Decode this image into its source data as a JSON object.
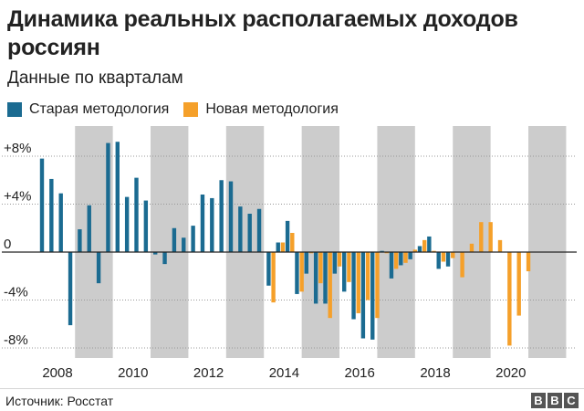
{
  "title": "Динамика реальных располагаемых доходов россиян",
  "subtitle": "Данные по кварталам",
  "source": "Источник: Росстат",
  "logo": [
    "B",
    "B",
    "C"
  ],
  "colors": {
    "old": "#1b6b91",
    "new": "#f5a02a",
    "shade": "#cccccc",
    "grid": "#999999",
    "zero": "#222222"
  },
  "chart_data": {
    "type": "bar",
    "x_axis_ticks": [
      "2008",
      "2010",
      "2012",
      "2014",
      "2016",
      "2018",
      "2020"
    ],
    "y_axis_ticks": [
      "+8%",
      "+4%",
      "0",
      "-4%",
      "-8%"
    ],
    "ylim": [
      -9,
      9.5
    ],
    "shading": "alternating years shaded grey",
    "legend_position": "top-left",
    "series": [
      {
        "name": "Старая методология",
        "color": "#1b6b91",
        "x": [
          "2008 Q1",
          "2008 Q2",
          "2008 Q3",
          "2008 Q4",
          "2009 Q1",
          "2009 Q2",
          "2009 Q3",
          "2009 Q4",
          "2010 Q1",
          "2010 Q2",
          "2010 Q3",
          "2010 Q4",
          "2011 Q1",
          "2011 Q2",
          "2011 Q3",
          "2011 Q4",
          "2012 Q1",
          "2012 Q2",
          "2012 Q3",
          "2012 Q4",
          "2013 Q1",
          "2013 Q2",
          "2013 Q3",
          "2013 Q4",
          "2014 Q1",
          "2014 Q2",
          "2014 Q3",
          "2014 Q4",
          "2015 Q1",
          "2015 Q2",
          "2015 Q3",
          "2015 Q4",
          "2016 Q1",
          "2016 Q2",
          "2016 Q3",
          "2016 Q4",
          "2017 Q1",
          "2017 Q2",
          "2017 Q3",
          "2017 Q4",
          "2018 Q1",
          "2018 Q2",
          "2018 Q3",
          "2018 Q4"
        ],
        "values": [
          7.8,
          6.1,
          4.9,
          -6.1,
          1.9,
          3.9,
          -2.6,
          9.1,
          9.2,
          4.6,
          6.2,
          4.3,
          -0.2,
          -1.0,
          2.0,
          1.2,
          2.2,
          4.8,
          4.5,
          6.0,
          5.9,
          3.8,
          3.2,
          3.6,
          -2.8,
          0.8,
          2.6,
          -3.5,
          -1.8,
          -4.3,
          -4.3,
          -1.8,
          -3.3,
          -5.6,
          -7.2,
          -7.3,
          0.1,
          -2.2,
          -1.1,
          -0.6,
          0.5,
          1.3,
          -1.4,
          -1.2
        ]
      },
      {
        "name": "Новая методология",
        "color": "#f5a02a",
        "x": [
          "2014 Q1",
          "2014 Q2",
          "2014 Q3",
          "2014 Q4",
          "2015 Q1",
          "2015 Q2",
          "2015 Q3",
          "2015 Q4",
          "2016 Q1",
          "2016 Q2",
          "2016 Q3",
          "2016 Q4",
          "2017 Q1",
          "2017 Q2",
          "2017 Q3",
          "2017 Q4",
          "2018 Q1",
          "2018 Q2",
          "2018 Q3",
          "2018 Q4",
          "2019 Q1",
          "2019 Q2",
          "2019 Q3",
          "2019 Q4",
          "2020 Q1",
          "2020 Q2",
          "2020 Q3",
          "2020 Q4"
        ],
        "values": [
          -4.2,
          0.8,
          1.6,
          -3.3,
          -0.1,
          -2.6,
          -5.5,
          -1.2,
          -2.5,
          -5.1,
          -4.0,
          -5.5,
          -0.1,
          -1.4,
          -0.9,
          0.2,
          1.0,
          0.1,
          -0.8,
          -0.5,
          -2.1,
          0.7,
          2.5,
          2.5,
          1.0,
          -7.8,
          -5.3,
          -1.6
        ]
      }
    ]
  }
}
